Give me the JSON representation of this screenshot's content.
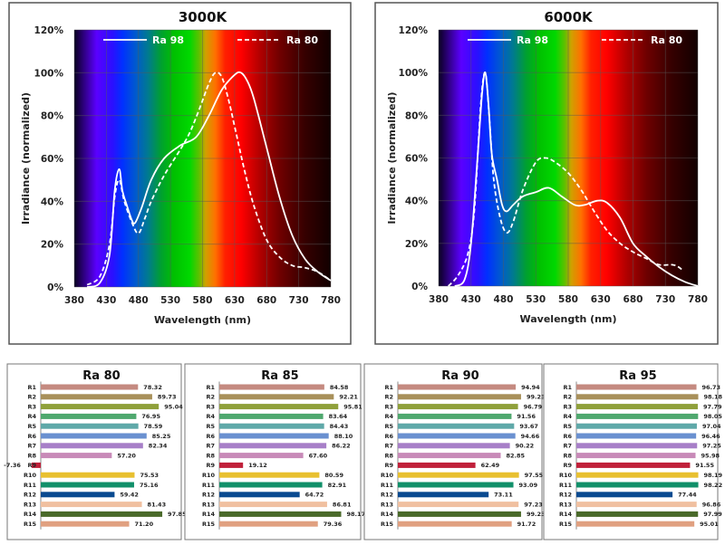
{
  "spectrum_colors": [
    {
      "nm": 380,
      "c": "#0a0020"
    },
    {
      "nm": 400,
      "c": "#3a00a0"
    },
    {
      "nm": 415,
      "c": "#5a00ff"
    },
    {
      "nm": 440,
      "c": "#2a10ff"
    },
    {
      "nm": 455,
      "c": "#0030ff"
    },
    {
      "nm": 475,
      "c": "#0058d0"
    },
    {
      "nm": 495,
      "c": "#007a90"
    },
    {
      "nm": 515,
      "c": "#00a030"
    },
    {
      "nm": 535,
      "c": "#00c000"
    },
    {
      "nm": 560,
      "c": "#00d800"
    },
    {
      "nm": 575,
      "c": "#60c000"
    },
    {
      "nm": 585,
      "c": "#d0a000"
    },
    {
      "nm": 600,
      "c": "#ff7000"
    },
    {
      "nm": 615,
      "c": "#ff2000"
    },
    {
      "nm": 640,
      "c": "#ff0000"
    },
    {
      "nm": 670,
      "c": "#b00000"
    },
    {
      "nm": 700,
      "c": "#700000"
    },
    {
      "nm": 740,
      "c": "#350000"
    },
    {
      "nm": 780,
      "c": "#120000"
    }
  ],
  "chart_data": [
    {
      "type": "line",
      "title": "3000K",
      "xlabel": "Wavelength (nm)",
      "ylabel": "Irradiance (normalized)",
      "xlim": [
        380,
        780
      ],
      "ylim": [
        0,
        120
      ],
      "xticks": [
        "380",
        "430",
        "480",
        "530",
        "580",
        "630",
        "680",
        "730",
        "780"
      ],
      "yticks": [
        "0%",
        "20%",
        "40%",
        "60%",
        "80%",
        "100%",
        "120%"
      ],
      "grid": true,
      "legend_position": "top-center",
      "series": [
        {
          "name": "Ra 98",
          "style": "solid",
          "points": [
            [
              400,
              0
            ],
            [
              420,
              2
            ],
            [
              435,
              15
            ],
            [
              443,
              45
            ],
            [
              450,
              55
            ],
            [
              455,
              45
            ],
            [
              462,
              38
            ],
            [
              470,
              31
            ],
            [
              475,
              30
            ],
            [
              485,
              37
            ],
            [
              500,
              50
            ],
            [
              520,
              60
            ],
            [
              545,
              66
            ],
            [
              570,
              70
            ],
            [
              590,
              80
            ],
            [
              610,
              92
            ],
            [
              630,
              99
            ],
            [
              640,
              100
            ],
            [
              650,
              96
            ],
            [
              660,
              88
            ],
            [
              680,
              65
            ],
            [
              700,
              42
            ],
            [
              720,
              24
            ],
            [
              740,
              13
            ],
            [
              760,
              7
            ],
            [
              780,
              3
            ]
          ]
        },
        {
          "name": "Ra 80",
          "style": "dashed",
          "points": [
            [
              400,
              1
            ],
            [
              420,
              5
            ],
            [
              435,
              20
            ],
            [
              443,
              42
            ],
            [
              450,
              50
            ],
            [
              458,
              40
            ],
            [
              470,
              30
            ],
            [
              480,
              25
            ],
            [
              490,
              32
            ],
            [
              500,
              40
            ],
            [
              520,
              52
            ],
            [
              545,
              64
            ],
            [
              560,
              72
            ],
            [
              575,
              83
            ],
            [
              590,
              95
            ],
            [
              600,
              100
            ],
            [
              610,
              98
            ],
            [
              620,
              88
            ],
            [
              630,
              75
            ],
            [
              645,
              55
            ],
            [
              660,
              38
            ],
            [
              680,
              22
            ],
            [
              700,
              14
            ],
            [
              720,
              10
            ],
            [
              740,
              9
            ],
            [
              760,
              7
            ],
            [
              780,
              3
            ]
          ]
        }
      ]
    },
    {
      "type": "line",
      "title": "6000K",
      "xlabel": "Wavelength (nm)",
      "ylabel": "Irradiance (normalized)",
      "xlim": [
        380,
        780
      ],
      "ylim": [
        0,
        120
      ],
      "xticks": [
        "380",
        "430",
        "480",
        "530",
        "580",
        "630",
        "680",
        "730",
        "780"
      ],
      "yticks": [
        "0%",
        "20%",
        "40%",
        "60%",
        "80%",
        "100%",
        "120%"
      ],
      "grid": true,
      "legend_position": "top-center",
      "series": [
        {
          "name": "Ra 98",
          "style": "solid",
          "points": [
            [
              405,
              0
            ],
            [
              420,
              3
            ],
            [
              430,
              20
            ],
            [
              440,
              60
            ],
            [
              447,
              90
            ],
            [
              452,
              100
            ],
            [
              457,
              85
            ],
            [
              462,
              62
            ],
            [
              470,
              50
            ],
            [
              478,
              38
            ],
            [
              485,
              35
            ],
            [
              495,
              38
            ],
            [
              510,
              42
            ],
            [
              530,
              44
            ],
            [
              550,
              46
            ],
            [
              570,
              42
            ],
            [
              590,
              38
            ],
            [
              605,
              38
            ],
            [
              625,
              40
            ],
            [
              640,
              39
            ],
            [
              660,
              32
            ],
            [
              680,
              20
            ],
            [
              700,
              14
            ],
            [
              720,
              9
            ],
            [
              740,
              5
            ],
            [
              760,
              2
            ],
            [
              780,
              0
            ]
          ]
        },
        {
          "name": "Ra 80",
          "style": "dashed",
          "points": [
            [
              395,
              0
            ],
            [
              410,
              5
            ],
            [
              425,
              15
            ],
            [
              435,
              35
            ],
            [
              445,
              85
            ],
            [
              452,
              100
            ],
            [
              458,
              80
            ],
            [
              465,
              50
            ],
            [
              475,
              32
            ],
            [
              485,
              25
            ],
            [
              495,
              30
            ],
            [
              510,
              45
            ],
            [
              530,
              58
            ],
            [
              545,
              60
            ],
            [
              560,
              58
            ],
            [
              580,
              53
            ],
            [
              600,
              45
            ],
            [
              620,
              35
            ],
            [
              640,
              26
            ],
            [
              660,
              20
            ],
            [
              680,
              16
            ],
            [
              700,
              13
            ],
            [
              720,
              10
            ],
            [
              740,
              10
            ],
            [
              750,
              9
            ],
            [
              758,
              7
            ]
          ]
        }
      ]
    },
    {
      "type": "bar",
      "orientation": "horizontal",
      "title": "Ra 80",
      "categories": [
        "R1",
        "R2",
        "R3",
        "R4",
        "R5",
        "R6",
        "R7",
        "R8",
        "R9",
        "R10",
        "R11",
        "R12",
        "R13",
        "R14",
        "R15"
      ],
      "values": [
        78.32,
        89.73,
        95.04,
        76.95,
        78.59,
        85.25,
        82.34,
        57.2,
        -7.36,
        75.53,
        75.16,
        59.42,
        81.43,
        97.85,
        71.2
      ],
      "labels": [
        "78.32",
        "89.73",
        "95.04",
        "76.95",
        "78.59",
        "85.25",
        "82.34",
        "57.20",
        "-7.36",
        "75.53",
        "75.16",
        "59.42",
        "81.43",
        "97.85",
        "71.20"
      ]
    },
    {
      "type": "bar",
      "orientation": "horizontal",
      "title": "Ra 85",
      "categories": [
        "R1",
        "R2",
        "R3",
        "R4",
        "R5",
        "R6",
        "R7",
        "R8",
        "R9",
        "R10",
        "R11",
        "R12",
        "R13",
        "R14",
        "R15"
      ],
      "values": [
        84.58,
        92.21,
        95.81,
        83.64,
        84.43,
        88.1,
        86.22,
        67.6,
        19.12,
        80.59,
        82.91,
        64.72,
        86.81,
        98.17,
        79.36
      ],
      "labels": [
        "84.58",
        "92.21",
        "95.81",
        "83.64",
        "84.43",
        "88.10",
        "86.22",
        "67.60",
        "19.12",
        "80.59",
        "82.91",
        "64.72",
        "86.81",
        "98.17",
        "79.36"
      ]
    },
    {
      "type": "bar",
      "orientation": "horizontal",
      "title": "Ra 90",
      "categories": [
        "R1",
        "R2",
        "R3",
        "R4",
        "R5",
        "R6",
        "R7",
        "R8",
        "R9",
        "R10",
        "R11",
        "R12",
        "R13",
        "R14",
        "R15"
      ],
      "values": [
        94.94,
        99.23,
        96.79,
        91.56,
        93.67,
        94.66,
        90.22,
        82.85,
        62.49,
        97.55,
        93.09,
        73.11,
        97.23,
        99.23,
        91.72
      ],
      "labels": [
        "94.94",
        "99.23",
        "96.79",
        "91.56",
        "93.67",
        "94.66",
        "90.22",
        "82.85",
        "62.49",
        "97.55",
        "93.09",
        "73.11",
        "97.23",
        "99.23",
        "91.72"
      ]
    },
    {
      "type": "bar",
      "orientation": "horizontal",
      "title": "Ra 95",
      "categories": [
        "R1",
        "R2",
        "R3",
        "R4",
        "R5",
        "R6",
        "R7",
        "R8",
        "R9",
        "R10",
        "R11",
        "R12",
        "R13",
        "R14",
        "R15"
      ],
      "values": [
        96.73,
        98.18,
        97.79,
        98.05,
        97.04,
        96.46,
        97.25,
        95.98,
        91.55,
        98.19,
        98.22,
        77.44,
        96.86,
        97.99,
        95.01
      ],
      "labels": [
        "96.73",
        "98.18",
        "97.79",
        "98.05",
        "97.04",
        "96.46",
        "97.25",
        "95.98",
        "91.55",
        "98.19",
        "98.22",
        "77.44",
        "96.86",
        "97.99",
        "95.01"
      ]
    }
  ],
  "bar_colors": [
    "#c48a80",
    "#a8905a",
    "#8fa03a",
    "#4fa86e",
    "#5fa8a8",
    "#6a90d0",
    "#a77fc8",
    "#c88ab8",
    "#c0203a",
    "#e8c030",
    "#12906a",
    "#0a4a90",
    "#f0c0a0",
    "#4a6a2a",
    "#e0a080"
  ]
}
